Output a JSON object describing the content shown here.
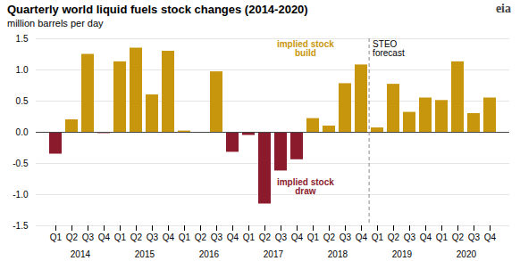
{
  "chart_data": {
    "type": "bar",
    "title": "Quarterly world liquid fuels stock changes (2014-2020)",
    "subtitle": "million barrels per day",
    "categories": [
      "Q1",
      "Q2",
      "Q3",
      "Q4",
      "Q1",
      "Q2",
      "Q3",
      "Q4",
      "Q1",
      "Q2",
      "Q3",
      "Q4",
      "Q1",
      "Q2",
      "Q3",
      "Q4",
      "Q1",
      "Q2",
      "Q3",
      "Q4",
      "Q1",
      "Q2",
      "Q3",
      "Q4",
      "Q1",
      "Q2",
      "Q3",
      "Q4"
    ],
    "groups": [
      "2014",
      "2015",
      "2016",
      "2017",
      "2018",
      "2019",
      "2020"
    ],
    "values": [
      -0.35,
      0.2,
      1.25,
      -0.02,
      1.13,
      1.35,
      0.6,
      1.3,
      0.02,
      -0.01,
      0.97,
      -0.32,
      -0.05,
      -1.15,
      -0.62,
      -0.44,
      0.22,
      0.1,
      0.78,
      1.08,
      0.07,
      0.77,
      0.32,
      0.55,
      0.51,
      1.13,
      0.3,
      0.55
    ],
    "colors": [
      "#8B1A2D",
      "#C8960C",
      "#C8960C",
      "#8B1A2D",
      "#C8960C",
      "#C8960C",
      "#C8960C",
      "#C8960C",
      "#C8960C",
      "#8B1A2D",
      "#C8960C",
      "#8B1A2D",
      "#8B1A2D",
      "#8B1A2D",
      "#8B1A2D",
      "#8B1A2D",
      "#C8960C",
      "#C8960C",
      "#C8960C",
      "#C8960C",
      "#C8960C",
      "#C8960C",
      "#C8960C",
      "#C8960C",
      "#C8960C",
      "#C8960C",
      "#C8960C",
      "#C8960C"
    ],
    "ylim": [
      -1.5,
      1.5
    ],
    "yticks": [
      -1.5,
      {
        "value": -1.0,
        "label": "-1.0"
      },
      -0.5,
      {
        "value": 0.0,
        "label": "0.0"
      },
      0.5,
      {
        "value": 1.0,
        "label": "1.0"
      },
      1.5
    ],
    "grid": true,
    "forecast_start_index": 20,
    "annotations": [
      {
        "text": "implied stock\nbuild",
        "color": "#C8960C"
      },
      {
        "text": "implied stock\ndraw",
        "color": "#8B1A2D"
      },
      {
        "text": "STEO\nforecast"
      }
    ],
    "logo": "eia"
  }
}
